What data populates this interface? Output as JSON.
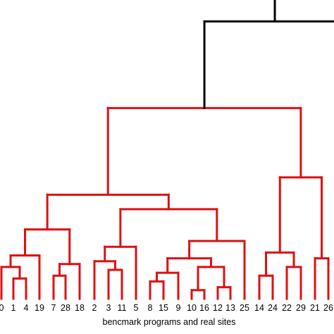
{
  "chart_data": {
    "type": "dendrogram",
    "xlabel": "bencmark programs and real sites",
    "colors": {
      "benchmark_cluster": "#dd1111",
      "top_links": "#000000"
    },
    "leaves": [
      "0",
      "1",
      "4",
      "19",
      "7",
      "28",
      "18",
      "2",
      "3",
      "11",
      "5",
      "8",
      "15",
      "9",
      "10",
      "16",
      "12",
      "13",
      "25",
      "14",
      "24",
      "22",
      "29",
      "21",
      "26"
    ],
    "merges": [
      {
        "id": "m1",
        "children": [
          "1",
          "4"
        ],
        "height": 0.35,
        "color": "red"
      },
      {
        "id": "m2",
        "children": [
          "0",
          "m1"
        ],
        "height": 0.55,
        "color": "red"
      },
      {
        "id": "m3",
        "children": [
          "m2",
          "19"
        ],
        "height": 0.75,
        "color": "red"
      },
      {
        "id": "m4",
        "children": [
          "7",
          "28"
        ],
        "height": 0.4,
        "color": "red"
      },
      {
        "id": "m5",
        "children": [
          "m4",
          "18"
        ],
        "height": 0.6,
        "color": "red"
      },
      {
        "id": "m6",
        "children": [
          "m3",
          "m5"
        ],
        "height": 1.2,
        "color": "red"
      },
      {
        "id": "m7",
        "children": [
          "3",
          "11"
        ],
        "height": 0.5,
        "color": "red"
      },
      {
        "id": "m8",
        "children": [
          "2",
          "m7"
        ],
        "height": 0.65,
        "color": "red"
      },
      {
        "id": "m9",
        "children": [
          "m8",
          "5"
        ],
        "height": 0.9,
        "color": "red"
      },
      {
        "id": "m10",
        "children": [
          "8",
          "15"
        ],
        "height": 0.3,
        "color": "red"
      },
      {
        "id": "m11",
        "children": [
          "9",
          "m10"
        ],
        "height": 0.45,
        "color": "red"
      },
      {
        "id": "m12",
        "children": [
          "10",
          "16"
        ],
        "height": 0.15,
        "color": "red"
      },
      {
        "id": "m13",
        "children": [
          "12",
          "13"
        ],
        "height": 0.2,
        "color": "red"
      },
      {
        "id": "m14",
        "children": [
          "m12",
          "m13"
        ],
        "height": 0.55,
        "color": "red"
      },
      {
        "id": "m15",
        "children": [
          "m11",
          "m14"
        ],
        "height": 0.7,
        "color": "red"
      },
      {
        "id": "m16",
        "children": [
          "m15",
          "25"
        ],
        "height": 1.0,
        "color": "red"
      },
      {
        "id": "m17",
        "children": [
          "m9",
          "m16"
        ],
        "height": 1.55,
        "color": "red"
      },
      {
        "id": "m18",
        "children": [
          "m6",
          "m17"
        ],
        "height": 1.8,
        "color": "red"
      },
      {
        "id": "m19",
        "children": [
          "14",
          "24"
        ],
        "height": 0.4,
        "color": "red"
      },
      {
        "id": "m20",
        "children": [
          "22",
          "29"
        ],
        "height": 0.55,
        "color": "red"
      },
      {
        "id": "m21",
        "children": [
          "m19",
          "m20"
        ],
        "height": 0.8,
        "color": "red"
      },
      {
        "id": "m22",
        "children": [
          "21",
          "26"
        ],
        "height": 0.7,
        "color": "red"
      },
      {
        "id": "m23",
        "children": [
          "m21",
          "m22"
        ],
        "height": 2.1,
        "color": "red"
      },
      {
        "id": "m24",
        "children": [
          "m18",
          "m23"
        ],
        "height": 3.3,
        "color": "red"
      },
      {
        "id": "m25",
        "children": [
          "m24",
          "hidden-right"
        ],
        "height": 4.8,
        "color": "black"
      },
      {
        "id": "m26",
        "children": [
          "m25",
          "hidden-right-2"
        ],
        "height": 5.3,
        "color": "black"
      }
    ]
  }
}
